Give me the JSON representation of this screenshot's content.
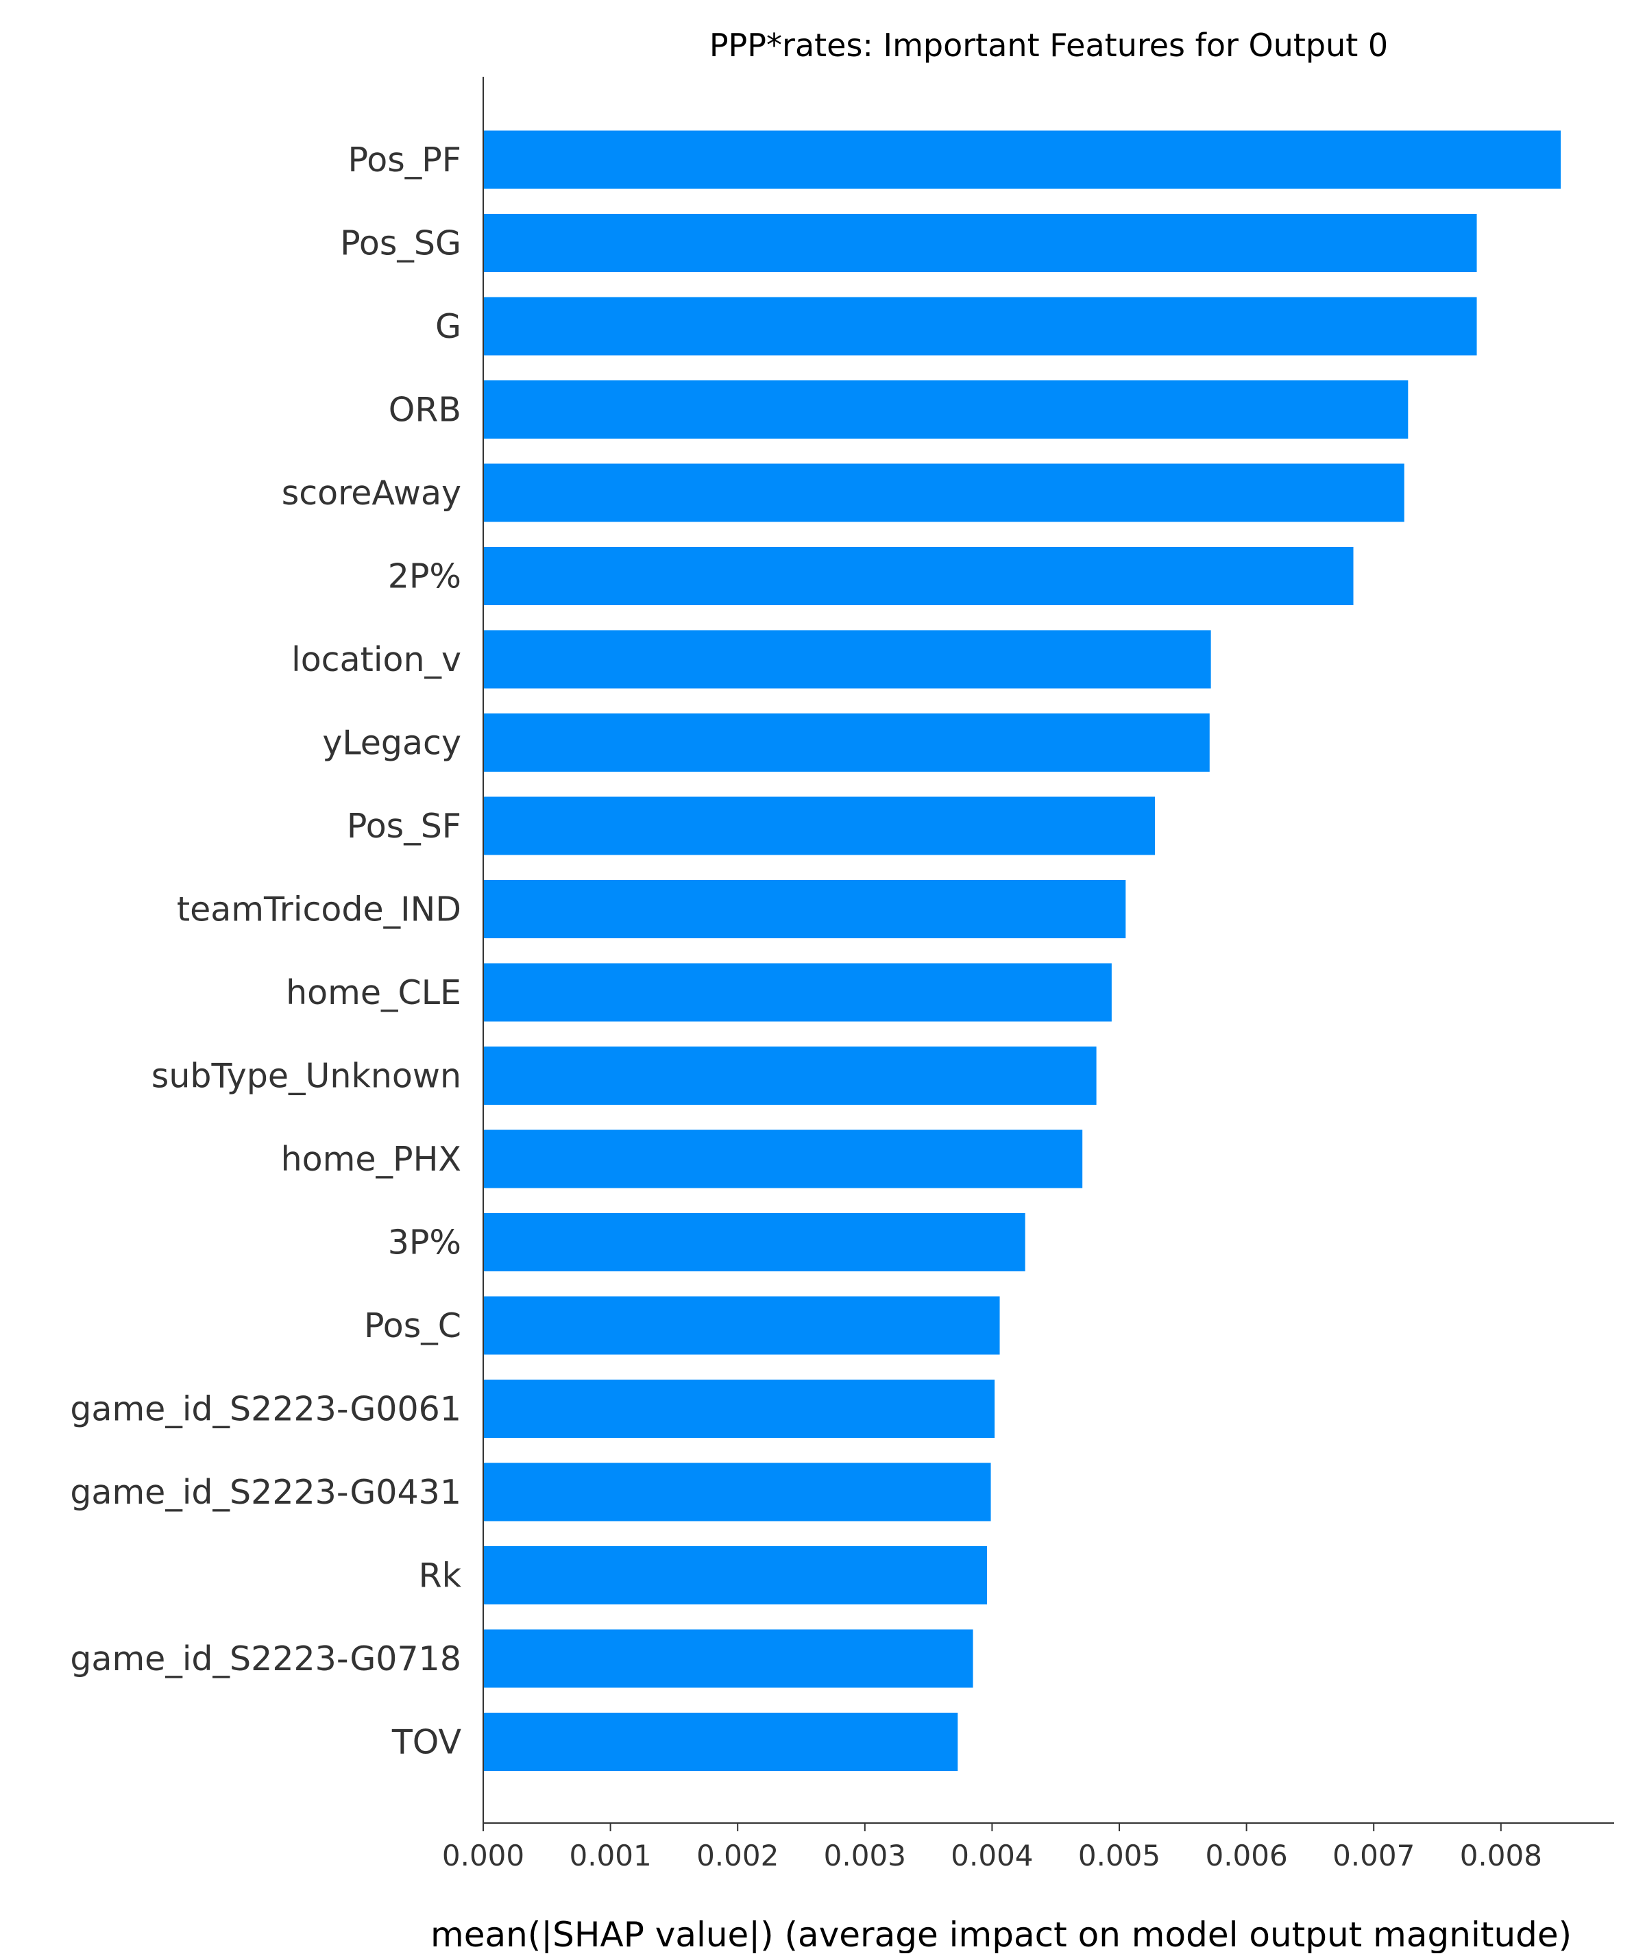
{
  "chart_data": {
    "type": "bar",
    "orientation": "horizontal",
    "title": "PPP*rates: Important Features for Output 0",
    "xlabel": "mean(|SHAP value|) (average impact on model output magnitude)",
    "ylabel": "",
    "xlim": [
      0,
      0.00889
    ],
    "xticks": [
      "0.000",
      "0.001",
      "0.002",
      "0.003",
      "0.004",
      "0.005",
      "0.006",
      "0.007",
      "0.008"
    ],
    "grid": false,
    "bar_color": "#008bfb",
    "categories": [
      "Pos_PF",
      "Pos_SG",
      "G",
      "ORB",
      "scoreAway",
      "2P%",
      "location_v",
      "yLegacy",
      "Pos_SF",
      "teamTricode_IND",
      "home_CLE",
      "subType_Unknown",
      "home_PHX",
      "3P%",
      "Pos_C",
      "game_id_S2223-G0061",
      "game_id_S2223-G0431",
      "Rk",
      "game_id_S2223-G0718",
      "TOV"
    ],
    "values": [
      0.00847,
      0.00781,
      0.00781,
      0.00727,
      0.00724,
      0.00684,
      0.00572,
      0.00571,
      0.00528,
      0.00505,
      0.00494,
      0.00482,
      0.00471,
      0.00426,
      0.00406,
      0.00402,
      0.00399,
      0.00396,
      0.00385,
      0.00373
    ]
  }
}
